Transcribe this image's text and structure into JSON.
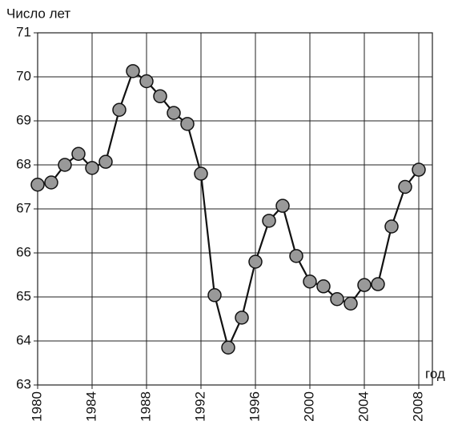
{
  "chart_data": {
    "type": "line",
    "y_label": "Число лет",
    "x_label": "год",
    "x": [
      1980,
      1981,
      1982,
      1983,
      1984,
      1985,
      1986,
      1987,
      1988,
      1989,
      1990,
      1991,
      1992,
      1993,
      1994,
      1995,
      1996,
      1997,
      1998,
      1999,
      2000,
      2001,
      2002,
      2003,
      2004,
      2005,
      2006,
      2007,
      2008
    ],
    "series": [
      {
        "color": "#999999",
        "values": [
          67.55,
          67.6,
          68.0,
          68.25,
          67.93,
          68.07,
          69.25,
          70.13,
          69.9,
          69.56,
          69.18,
          68.93,
          67.8,
          65.04,
          63.85,
          64.53,
          65.8,
          66.73,
          67.07,
          65.93,
          65.35,
          65.24,
          64.95,
          64.85,
          65.27,
          65.29,
          66.6,
          67.5,
          67.89
        ]
      }
    ],
    "xlim": [
      1980,
      2009
    ],
    "xticks": [
      1980,
      1984,
      1988,
      1992,
      1996,
      2000,
      2004,
      2008
    ],
    "ylim": [
      63,
      71
    ],
    "yticks": [
      63,
      64,
      65,
      66,
      67,
      68,
      69,
      70,
      71
    ],
    "grid": true
  }
}
